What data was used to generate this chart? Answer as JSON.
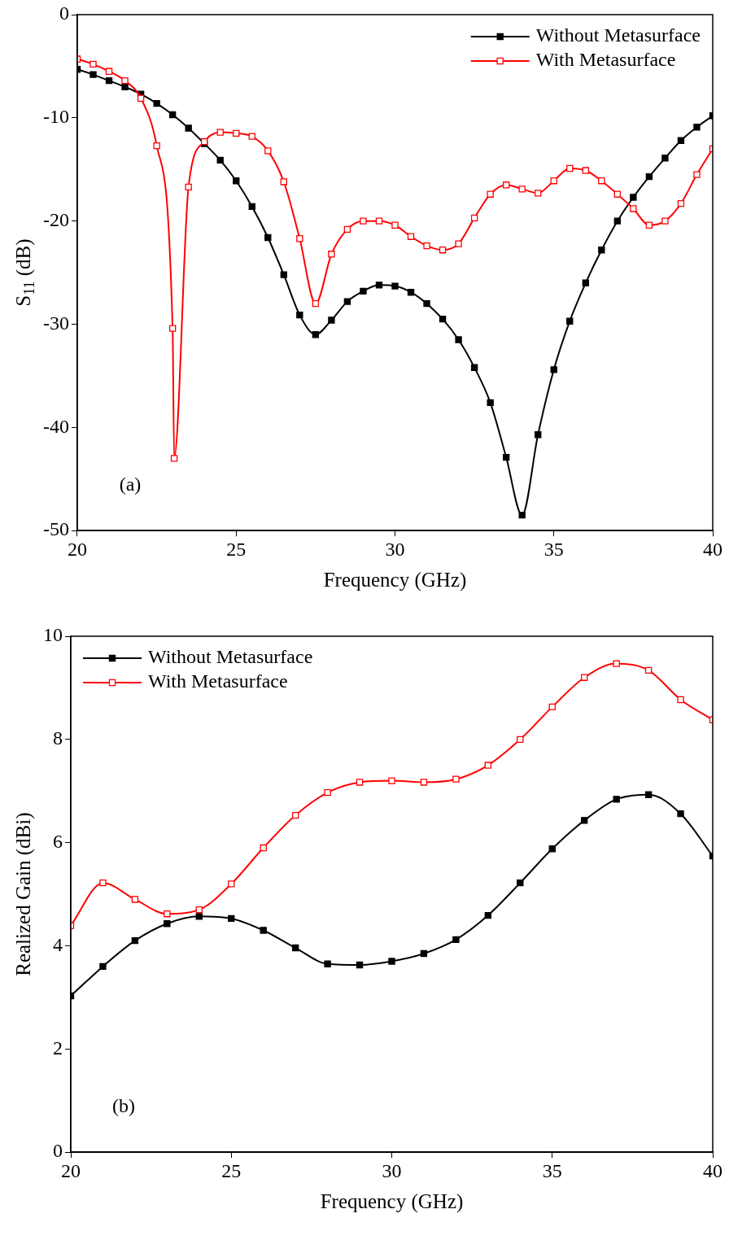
{
  "chart_data": [
    {
      "type": "line",
      "xlabel": "Frequency (GHz)",
      "ylabel": "S$_{11}$ (dB)",
      "xlim": [
        20,
        40
      ],
      "xticks": [
        20,
        25,
        30,
        35,
        40
      ],
      "ylim": [
        -50,
        0
      ],
      "yticks": [
        -50,
        -40,
        -30,
        -20,
        -10,
        0
      ],
      "legend": "top right",
      "marker": "square",
      "line_style": "solid",
      "annotations": [
        "(a)"
      ],
      "series": [
        {
          "name": "Without Metasurface",
          "color": "#000000",
          "x": [
            20,
            20.5,
            21,
            21.5,
            22,
            22.5,
            23,
            23.5,
            24,
            24.5,
            25,
            25.5,
            26,
            26.5,
            27,
            27.5,
            28,
            28.5,
            29,
            29.5,
            30,
            30.5,
            31,
            31.5,
            32,
            32.5,
            33,
            33.5,
            34,
            34.5,
            35,
            35.5,
            36,
            36.5,
            37,
            37.5,
            38,
            38.5,
            39,
            39.5,
            40
          ],
          "values": [
            -5.3,
            -5.8,
            -6.4,
            -7.0,
            -7.7,
            -8.6,
            -9.7,
            -11.0,
            -12.5,
            -14.1,
            -16.1,
            -18.6,
            -21.6,
            -25.2,
            -29.1,
            -31.0,
            -29.6,
            -27.8,
            -26.8,
            -26.2,
            -26.3,
            -26.9,
            -28.0,
            -29.5,
            -31.5,
            -34.2,
            -37.6,
            -42.9,
            -48.5,
            -40.7,
            -34.4,
            -29.7,
            -26.0,
            -22.8,
            -20.0,
            -17.7,
            -15.7,
            -13.9,
            -12.2,
            -10.9,
            -9.8
          ]
        },
        {
          "name": "With Metasurface",
          "color": "#ff0000",
          "x": [
            20,
            20.5,
            21,
            21.5,
            22,
            22.5,
            23,
            23.05,
            23.5,
            24,
            24.5,
            25,
            25.5,
            26,
            26.5,
            27,
            27.5,
            28,
            28.5,
            29,
            29.5,
            30,
            30.5,
            31,
            31.5,
            32,
            32.5,
            33,
            33.5,
            34,
            34.5,
            35,
            35.5,
            36,
            36.5,
            37,
            37.5,
            38,
            38.5,
            39,
            39.5,
            40
          ],
          "values": [
            -4.3,
            -4.8,
            -5.5,
            -6.4,
            -8.1,
            -12.7,
            -30.4,
            -43.0,
            -16.7,
            -12.3,
            -11.4,
            -11.5,
            -11.8,
            -13.2,
            -16.2,
            -21.7,
            -28.0,
            -23.2,
            -20.8,
            -20.0,
            -20.0,
            -20.4,
            -21.5,
            -22.4,
            -22.8,
            -22.2,
            -19.7,
            -17.4,
            -16.5,
            -16.9,
            -17.3,
            -16.1,
            -14.9,
            -15.1,
            -16.1,
            -17.4,
            -18.8,
            -20.4,
            -20.0,
            -18.3,
            -15.5,
            -13.0
          ]
        }
      ]
    },
    {
      "type": "line",
      "xlabel": "Frequency (GHz)",
      "ylabel": "Realized Gain (dBi)",
      "xlim": [
        20,
        40
      ],
      "xticks": [
        20,
        25,
        30,
        35,
        40
      ],
      "ylim": [
        0,
        10
      ],
      "yticks": [
        0,
        2,
        4,
        6,
        8,
        10
      ],
      "legend": "top left",
      "marker": "square",
      "line_style": "solid",
      "annotations": [
        "(b)"
      ],
      "series": [
        {
          "name": "Without Metasurface",
          "color": "#000000",
          "x": [
            20,
            21,
            22,
            23,
            24,
            25,
            26,
            27,
            28,
            29,
            30,
            31,
            32,
            33,
            34,
            35,
            36,
            37,
            38,
            39,
            40
          ],
          "values": [
            3.03,
            3.6,
            4.1,
            4.43,
            4.57,
            4.53,
            4.3,
            3.96,
            3.65,
            3.63,
            3.7,
            3.85,
            4.12,
            4.59,
            5.22,
            5.88,
            6.43,
            6.84,
            6.93,
            6.56,
            5.74
          ]
        },
        {
          "name": "With Metasurface",
          "color": "#ff0000",
          "x": [
            20,
            21,
            22,
            23,
            24,
            25,
            26,
            27,
            28,
            29,
            30,
            31,
            32,
            33,
            34,
            35,
            36,
            37,
            38,
            39,
            40
          ],
          "values": [
            4.39,
            5.22,
            4.9,
            4.62,
            4.7,
            5.2,
            5.9,
            6.53,
            6.97,
            7.17,
            7.2,
            7.17,
            7.23,
            7.5,
            8.0,
            8.63,
            9.2,
            9.47,
            9.34,
            8.77,
            8.38
          ]
        }
      ]
    }
  ]
}
